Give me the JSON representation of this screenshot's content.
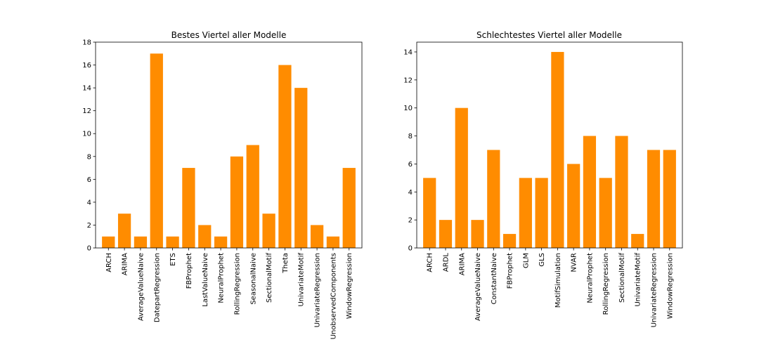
{
  "chart_data": [
    {
      "type": "bar",
      "title": "Bestes Viertel aller Modelle",
      "xlabel": "",
      "ylabel": "",
      "ylim": [
        0,
        18
      ],
      "yticks": [
        0,
        2,
        4,
        6,
        8,
        10,
        12,
        14,
        16,
        18
      ],
      "grid": false,
      "bar_color": "#ff8c00",
      "categories": [
        "ARCH",
        "ARIMA",
        "AverageValueNaive",
        "DatepartRegression",
        "ETS",
        "FBProphet",
        "LastValueNaive",
        "NeuralProphet",
        "RollingRegression",
        "SeasonalNaive",
        "SectionalMotif",
        "Theta",
        "UnivariateMotif",
        "UnivariateRegression",
        "UnobservedComponents",
        "WindowRegression"
      ],
      "values": [
        1,
        3,
        1,
        17,
        1,
        7,
        2,
        1,
        8,
        9,
        3,
        16,
        14,
        2,
        1,
        7
      ]
    },
    {
      "type": "bar",
      "title": "Schlechtestes Viertel aller Modelle",
      "xlabel": "",
      "ylabel": "",
      "ylim": [
        0,
        14.7
      ],
      "yticks": [
        0,
        2,
        4,
        6,
        8,
        10,
        12,
        14
      ],
      "grid": false,
      "bar_color": "#ff8c00",
      "categories": [
        "ARCH",
        "ARDL",
        "ARIMA",
        "AverageValueNaive",
        "ConstantNaive",
        "FBProphet",
        "GLM",
        "GLS",
        "MotifSimulation",
        "NVAR",
        "NeuralProphet",
        "RollingRegression",
        "SectionalMotif",
        "UnivariateMotif",
        "UnivariateRegression",
        "WindowRegression"
      ],
      "values": [
        5,
        2,
        10,
        2,
        7,
        1,
        5,
        5,
        14,
        6,
        8,
        5,
        8,
        1,
        7,
        7
      ]
    }
  ]
}
